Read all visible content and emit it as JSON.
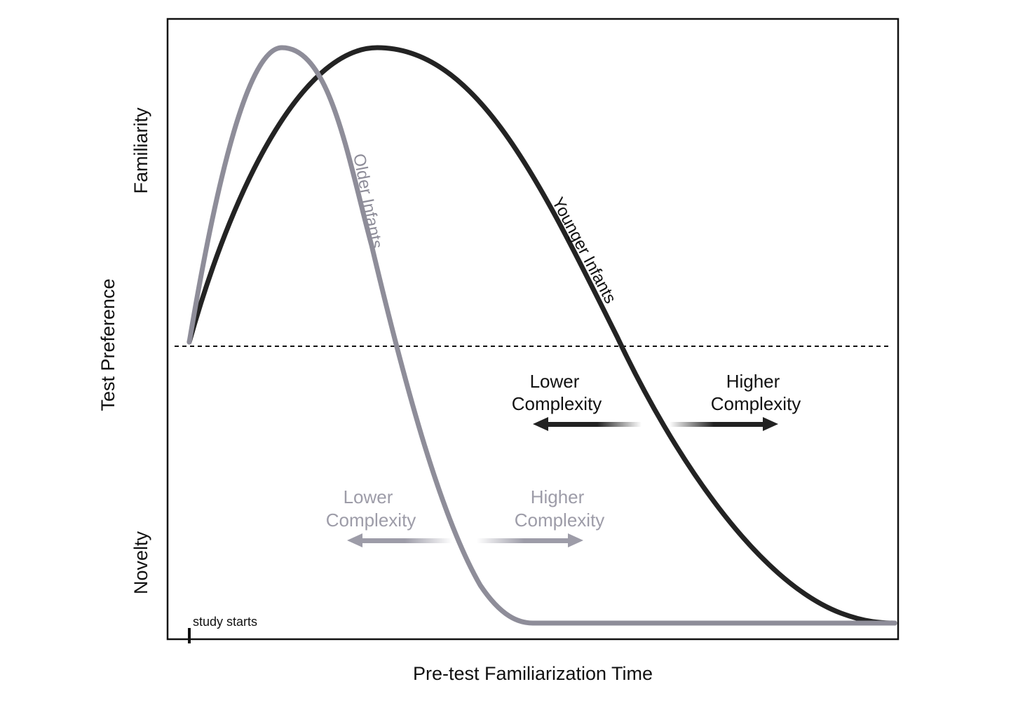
{
  "axes": {
    "x_label": "Pre-test Familiarization Time",
    "y_label": "Test Preference",
    "y_top": "Familiarity",
    "y_bottom": "Novelty",
    "study_marker": "study starts"
  },
  "curves": {
    "older": {
      "label": "Older Infants",
      "color": "#8e8d99"
    },
    "younger": {
      "label": "Younger Infants",
      "color": "#232323"
    }
  },
  "complexity": {
    "dark": {
      "lower": [
        "Lower",
        "Complexity"
      ],
      "higher": [
        "Higher",
        "Complexity"
      ],
      "color": "#222222"
    },
    "light": {
      "lower": [
        "Lower",
        "Complexity"
      ],
      "higher": [
        "Higher",
        "Complexity"
      ],
      "color": "#9d9ca8"
    }
  }
}
